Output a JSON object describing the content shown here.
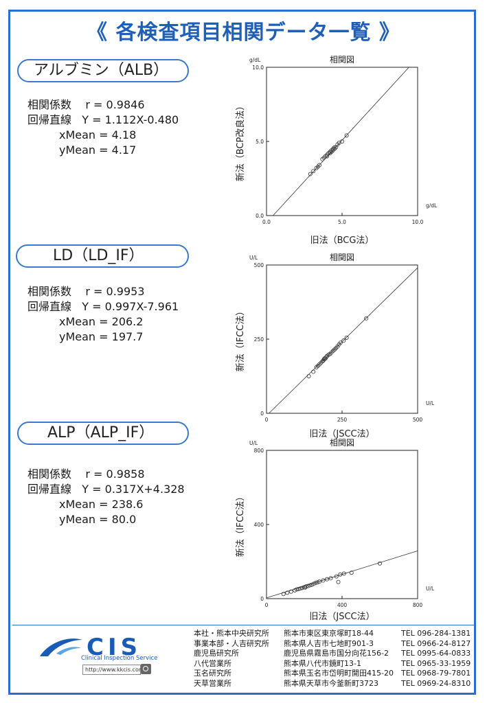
{
  "page_title": "《 各検査項目相関データ一覧 》",
  "sections": [
    {
      "name": "アルブミン（ALB）",
      "coef_label": "相関係数",
      "coef": "r = 0.9846",
      "reg_label": "回帰直線",
      "reg": "Y = 1.112X-0.480",
      "xmean": "xMean = 4.18",
      "ymean": "yMean = 4.17"
    },
    {
      "name": "LD（LD_IF）",
      "coef_label": "相関係数",
      "coef": "r = 0.9953",
      "reg_label": "回帰直線",
      "reg": "Y = 0.997X-7.961",
      "xmean": "xMean = 206.2",
      "ymean": "yMean = 197.7"
    },
    {
      "name": "ALP（ALP_IF）",
      "coef_label": "相関係数",
      "coef": "r = 0.9858",
      "reg_label": "回帰直線",
      "reg": "Y = 0.317X+4.328",
      "xmean": "xMean = 238.6",
      "ymean": "yMean = 80.0"
    }
  ],
  "chart_data": [
    {
      "type": "scatter",
      "title": "相関図",
      "xlabel": "旧法（BCG法）",
      "ylabel": "新法（BCP改良法）",
      "x_unit": "g/dL",
      "y_unit": "g/dL",
      "xlim": [
        0,
        10
      ],
      "ylim": [
        0,
        10
      ],
      "xticks": [
        "0.0",
        "5.0",
        "10.0"
      ],
      "yticks": [
        "0.0",
        "5.0",
        "10.0"
      ],
      "regression": {
        "slope": 1.112,
        "intercept": -0.48
      },
      "points": [
        [
          2.9,
          2.8
        ],
        [
          3.1,
          3.0
        ],
        [
          3.3,
          3.2
        ],
        [
          3.4,
          3.3
        ],
        [
          3.5,
          3.4
        ],
        [
          3.7,
          3.8
        ],
        [
          3.8,
          3.9
        ],
        [
          3.9,
          4.0
        ],
        [
          4.0,
          4.1
        ],
        [
          4.0,
          4.0
        ],
        [
          4.1,
          4.2
        ],
        [
          4.2,
          4.2
        ],
        [
          4.2,
          4.3
        ],
        [
          4.3,
          4.3
        ],
        [
          4.3,
          4.4
        ],
        [
          4.4,
          4.4
        ],
        [
          4.4,
          4.5
        ],
        [
          4.5,
          4.6
        ],
        [
          4.5,
          4.5
        ],
        [
          4.6,
          4.6
        ],
        [
          4.7,
          4.8
        ],
        [
          4.8,
          4.9
        ],
        [
          5.0,
          5.0
        ],
        [
          5.3,
          5.4
        ]
      ]
    },
    {
      "type": "scatter",
      "title": "相関図",
      "xlabel": "旧法（JSCC法）",
      "ylabel": "新法（IFCC法）",
      "x_unit": "U/L",
      "y_unit": "U/L",
      "xlim": [
        0,
        500
      ],
      "ylim": [
        0,
        500
      ],
      "xticks": [
        "0",
        "250",
        "500"
      ],
      "yticks": [
        "0",
        "250",
        "500"
      ],
      "regression": {
        "slope": 0.997,
        "intercept": -7.961
      },
      "points": [
        [
          140,
          125
        ],
        [
          155,
          140
        ],
        [
          165,
          155
        ],
        [
          170,
          160
        ],
        [
          175,
          165
        ],
        [
          180,
          170
        ],
        [
          185,
          175
        ],
        [
          188,
          178
        ],
        [
          190,
          182
        ],
        [
          192,
          185
        ],
        [
          195,
          185
        ],
        [
          198,
          190
        ],
        [
          200,
          193
        ],
        [
          205,
          197
        ],
        [
          210,
          200
        ],
        [
          215,
          205
        ],
        [
          220,
          210
        ],
        [
          225,
          215
        ],
        [
          230,
          220
        ],
        [
          235,
          225
        ],
        [
          240,
          232
        ],
        [
          245,
          238
        ],
        [
          255,
          245
        ],
        [
          265,
          255
        ],
        [
          330,
          320
        ]
      ]
    },
    {
      "type": "scatter",
      "title": "相関図",
      "xlabel": "旧法（JSCC法）",
      "ylabel": "新法（IFCC法）",
      "x_unit": "U/L",
      "y_unit": "U/L",
      "xlim": [
        0,
        800
      ],
      "ylim": [
        0,
        800
      ],
      "xticks": [
        "0",
        "400",
        "800"
      ],
      "yticks": [
        "0",
        "400",
        "800"
      ],
      "regression": {
        "slope": 0.317,
        "intercept": 4.328
      },
      "points": [
        [
          90,
          25
        ],
        [
          110,
          32
        ],
        [
          130,
          38
        ],
        [
          150,
          45
        ],
        [
          160,
          50
        ],
        [
          170,
          52
        ],
        [
          180,
          55
        ],
        [
          190,
          58
        ],
        [
          200,
          62
        ],
        [
          205,
          60
        ],
        [
          210,
          66
        ],
        [
          220,
          68
        ],
        [
          230,
          72
        ],
        [
          240,
          75
        ],
        [
          250,
          80
        ],
        [
          260,
          85
        ],
        [
          270,
          88
        ],
        [
          280,
          92
        ],
        [
          300,
          98
        ],
        [
          320,
          105
        ],
        [
          340,
          110
        ],
        [
          370,
          120
        ],
        [
          380,
          90
        ],
        [
          390,
          130
        ],
        [
          410,
          135
        ],
        [
          450,
          140
        ],
        [
          600,
          190
        ]
      ]
    }
  ],
  "footer": {
    "logo_text": "CIS",
    "logo_sub": "Clinical Inspection Service",
    "url": "http://www.kkcis.com",
    "offices": [
      {
        "name": "本社・熊本中央研究所",
        "address": "熊本市東区東京塚町18-44",
        "tel": "TEL 096-284-1381"
      },
      {
        "name": "事業本部・人吉研究所",
        "address": "熊本県人吉市七地町901-3",
        "tel": "TEL 0966-24-8127"
      },
      {
        "name": "鹿児島研究所",
        "address": "鹿児島県霧島市国分向花156-2",
        "tel": "TEL 0995-64-0833"
      },
      {
        "name": "八代営業所",
        "address": "熊本県八代市鏡町13-1",
        "tel": "TEL 0965-33-1959"
      },
      {
        "name": "玉名研究所",
        "address": "熊本県玉名市岱明町開田415-20",
        "tel": "TEL 0968-79-7801"
      },
      {
        "name": "天草営業所",
        "address": "熊本県天草市今釜新町3723",
        "tel": "TEL 0969-24-8310"
      }
    ]
  },
  "colors": {
    "accent": "#2a6ed0",
    "title": "#1f5fb8",
    "logo": "#1a5bb5"
  }
}
